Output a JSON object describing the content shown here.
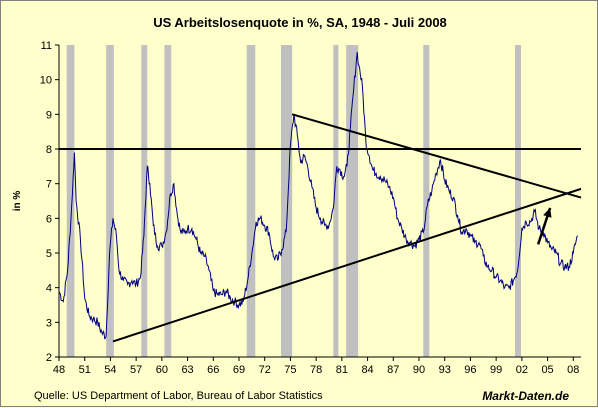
{
  "chart_data": {
    "type": "line",
    "title": "US Arbeitslosenquote in %, SA, 1948 - Juli 2008",
    "ylabel": "in %",
    "xlabel": "",
    "ylim": [
      2,
      11
    ],
    "xlim": [
      1948,
      2008.9
    ],
    "yticks": [
      "2",
      "3",
      "4",
      "5",
      "6",
      "7",
      "8",
      "9",
      "10",
      "11"
    ],
    "xtick_labels": [
      "48",
      "51",
      "54",
      "57",
      "60",
      "63",
      "66",
      "69",
      "72",
      "75",
      "78",
      "81",
      "84",
      "87",
      "90",
      "93",
      "96",
      "99",
      "02",
      "05",
      "08"
    ],
    "grid": false,
    "recessions": [
      [
        1948.9,
        1949.8
      ],
      [
        1953.5,
        1954.4
      ],
      [
        1957.6,
        1958.3
      ],
      [
        1960.3,
        1961.1
      ],
      [
        1969.9,
        1970.9
      ],
      [
        1973.9,
        1975.2
      ],
      [
        1980.0,
        1980.6
      ],
      [
        1981.5,
        1982.9
      ],
      [
        1990.5,
        1991.2
      ],
      [
        2001.2,
        2001.9
      ]
    ],
    "series": [
      {
        "color": "#000080",
        "x": [
          1948.0,
          1948.5,
          1949.0,
          1949.4,
          1949.8,
          1950.0,
          1950.5,
          1951.0,
          1951.5,
          1952.0,
          1952.5,
          1953.0,
          1953.5,
          1953.9,
          1954.3,
          1954.7,
          1955.0,
          1955.5,
          1956.0,
          1956.5,
          1957.0,
          1957.5,
          1957.9,
          1958.3,
          1958.6,
          1959.0,
          1959.5,
          1960.0,
          1960.5,
          1961.0,
          1961.4,
          1961.8,
          1962.2,
          1962.6,
          1963.0,
          1963.5,
          1964.0,
          1964.5,
          1965.0,
          1965.5,
          1966.0,
          1966.5,
          1967.0,
          1967.5,
          1968.0,
          1968.5,
          1969.0,
          1969.5,
          1970.0,
          1970.5,
          1971.0,
          1971.5,
          1972.0,
          1972.5,
          1973.0,
          1973.5,
          1974.0,
          1974.5,
          1975.0,
          1975.4,
          1975.8,
          1976.2,
          1976.6,
          1977.0,
          1977.5,
          1978.0,
          1978.5,
          1979.0,
          1979.5,
          1980.0,
          1980.4,
          1980.8,
          1981.2,
          1981.6,
          1982.0,
          1982.4,
          1982.8,
          1983.0,
          1983.4,
          1983.8,
          1984.2,
          1984.6,
          1985.0,
          1985.5,
          1986.0,
          1986.5,
          1987.0,
          1987.5,
          1988.0,
          1988.5,
          1989.0,
          1989.5,
          1990.0,
          1990.5,
          1991.0,
          1991.5,
          1992.0,
          1992.5,
          1993.0,
          1993.5,
          1994.0,
          1994.5,
          1995.0,
          1995.5,
          1996.0,
          1996.5,
          1997.0,
          1997.5,
          1998.0,
          1998.5,
          1999.0,
          1999.5,
          2000.0,
          2000.5,
          2001.0,
          2001.5,
          2002.0,
          2002.5,
          2003.0,
          2003.5,
          2004.0,
          2004.5,
          2005.0,
          2005.5,
          2006.0,
          2006.5,
          2007.0,
          2007.5,
          2008.0,
          2008.5
        ],
        "values": [
          3.9,
          3.6,
          4.5,
          6.0,
          7.9,
          6.5,
          5.4,
          3.7,
          3.2,
          3.1,
          3.0,
          2.7,
          2.6,
          5.0,
          6.0,
          5.5,
          4.5,
          4.2,
          4.1,
          4.2,
          4.1,
          4.3,
          5.5,
          7.5,
          7.0,
          5.8,
          5.2,
          5.2,
          5.6,
          6.7,
          7.0,
          6.1,
          5.6,
          5.6,
          5.7,
          5.7,
          5.4,
          5.0,
          4.9,
          4.5,
          3.9,
          3.8,
          3.8,
          3.9,
          3.7,
          3.6,
          3.5,
          3.6,
          4.2,
          5.0,
          5.9,
          6.0,
          5.8,
          5.6,
          4.9,
          4.8,
          5.1,
          5.6,
          8.1,
          9.0,
          8.4,
          7.6,
          7.8,
          7.5,
          6.9,
          6.3,
          6.0,
          5.8,
          5.8,
          6.3,
          7.5,
          7.4,
          7.2,
          7.5,
          8.6,
          9.8,
          10.8,
          10.4,
          9.8,
          8.2,
          7.8,
          7.4,
          7.3,
          7.2,
          7.1,
          6.9,
          6.6,
          6.0,
          5.7,
          5.4,
          5.3,
          5.2,
          5.4,
          5.6,
          6.4,
          6.8,
          7.3,
          7.7,
          7.1,
          6.8,
          6.6,
          6.1,
          5.6,
          5.7,
          5.5,
          5.3,
          5.3,
          4.9,
          4.6,
          4.5,
          4.3,
          4.2,
          4.0,
          4.0,
          4.2,
          4.5,
          5.7,
          5.9,
          5.9,
          6.2,
          5.7,
          5.6,
          5.3,
          5.1,
          5.0,
          4.7,
          4.6,
          4.6,
          5.0,
          5.5
        ]
      }
    ],
    "trendlines": [
      {
        "x": [
          1948.0,
          2008.9
        ],
        "y": [
          8.0,
          8.0
        ]
      },
      {
        "x": [
          1954.3,
          2008.9
        ],
        "y": [
          2.45,
          6.85
        ]
      },
      {
        "x": [
          1975.2,
          2008.9
        ],
        "y": [
          9.0,
          6.6
        ]
      }
    ],
    "annotations": [
      "arrow-up-right"
    ]
  },
  "footer": {
    "source": "Quelle: US Department of Labor, Bureau of Labor Statistics",
    "brand": "Markt-Daten.de"
  },
  "colors": {
    "background": "#FFFFCC",
    "recession": "#C0C0C0",
    "series": "#000080",
    "trend": "#000000"
  }
}
